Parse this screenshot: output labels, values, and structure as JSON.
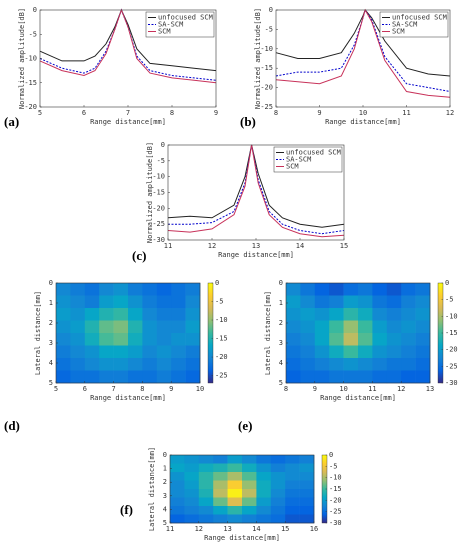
{
  "chart_data": [
    {
      "type": "line",
      "label": "(a)",
      "xlabel": "Range distance[mm]",
      "ylabel": "Normalized amplitude[dB]",
      "x": [
        5,
        5.5,
        6,
        6.25,
        6.5,
        6.7,
        6.85,
        7,
        7.2,
        7.5,
        8,
        8.5,
        9
      ],
      "series": [
        {
          "name": "unfocused SCM",
          "color": "#222222",
          "dashed": false,
          "values": [
            -8.5,
            -10.5,
            -10.5,
            -9.5,
            -7,
            -3.5,
            0,
            -3,
            -8,
            -11,
            -11.5,
            -12,
            -12.5
          ]
        },
        {
          "name": "SA-SCM",
          "color": "#0000cc",
          "dashed": true,
          "values": [
            -10,
            -12,
            -13,
            -12,
            -8.5,
            -4,
            0,
            -3.5,
            -9.5,
            -12.5,
            -13.5,
            -14,
            -14.5
          ]
        },
        {
          "name": "SCM",
          "color": "#c8325a",
          "dashed": false,
          "values": [
            -10.5,
            -12.5,
            -13.5,
            -12.5,
            -9,
            -4,
            0,
            -3.5,
            -10,
            -13,
            -14,
            -14.5,
            -15
          ]
        }
      ],
      "xlim": [
        5,
        9
      ],
      "xticks": [
        5,
        6,
        7,
        8,
        9
      ],
      "ylim": [
        -20,
        0
      ],
      "yticks": [
        0,
        -5,
        -10,
        -15,
        -20
      ],
      "legend": "upper right"
    },
    {
      "type": "line",
      "label": "(b)",
      "xlabel": "Range distance[mm]",
      "ylabel": "Normalized amplitude[dB]",
      "x": [
        8,
        8.5,
        9,
        9.5,
        9.8,
        10,
        10.05,
        10.2,
        10.5,
        11,
        11.5,
        12
      ],
      "series": [
        {
          "name": "unfocused SCM",
          "color": "#222222",
          "dashed": false,
          "values": [
            -11,
            -12.5,
            -12.5,
            -11,
            -6,
            -1.5,
            0,
            -2,
            -8,
            -15,
            -16.5,
            -17
          ]
        },
        {
          "name": "SA-SCM",
          "color": "#0000cc",
          "dashed": true,
          "values": [
            -17,
            -16,
            -16,
            -15,
            -9,
            -2,
            0,
            -2.5,
            -12,
            -19,
            -20,
            -21
          ]
        },
        {
          "name": "SCM",
          "color": "#c8325a",
          "dashed": false,
          "values": [
            -18,
            -18.5,
            -19,
            -17,
            -10,
            -2,
            0,
            -3,
            -13,
            -21,
            -22,
            -22.5
          ]
        }
      ],
      "xlim": [
        8,
        12
      ],
      "xticks": [
        8,
        9,
        10,
        11,
        12
      ],
      "ylim": [
        -25,
        0
      ],
      "yticks": [
        0,
        -5,
        -10,
        -15,
        -20,
        -25
      ],
      "legend": "upper right"
    },
    {
      "type": "line",
      "label": "(c)",
      "xlabel": "Range distance[mm]",
      "ylabel": "Normalized amplitude[dB]",
      "x": [
        11,
        11.5,
        12,
        12.5,
        12.75,
        12.9,
        13.05,
        13.3,
        13.6,
        14,
        14.5,
        15
      ],
      "series": [
        {
          "name": "unfocused SCM",
          "color": "#222222",
          "dashed": false,
          "values": [
            -23,
            -22.5,
            -23,
            -19,
            -10,
            0,
            -9,
            -19,
            -23,
            -25,
            -26,
            -25
          ]
        },
        {
          "name": "SA-SCM",
          "color": "#0000cc",
          "dashed": true,
          "values": [
            -25,
            -25,
            -24.5,
            -21,
            -12,
            0,
            -11,
            -21,
            -25,
            -27,
            -28,
            -27
          ]
        },
        {
          "name": "SCM",
          "color": "#c8325a",
          "dashed": false,
          "values": [
            -27,
            -27.5,
            -26.5,
            -22,
            -13,
            0,
            -12,
            -22,
            -26,
            -28,
            -29,
            -28.5
          ]
        }
      ],
      "xlim": [
        11,
        15
      ],
      "xticks": [
        11,
        12,
        13,
        14,
        15
      ],
      "ylim": [
        -30,
        0
      ],
      "yticks": [
        0,
        -5,
        -10,
        -15,
        -20,
        -25,
        -30
      ],
      "legend": "upper right"
    },
    {
      "type": "heatmap",
      "label": "(d)",
      "xlabel": "Range distance[mm]",
      "ylabel": "Lateral distance[mm]",
      "xlim": [
        5,
        10
      ],
      "xticks": [
        5,
        6,
        7,
        8,
        9,
        10
      ],
      "ylim": [
        0,
        5
      ],
      "yticks": [
        0,
        1,
        2,
        3,
        4,
        5
      ],
      "y_reversed": true,
      "zlim": [
        -27,
        0
      ],
      "zticks": [
        0,
        -5,
        -10,
        -15,
        -20,
        -25
      ],
      "colorscale": [
        "#352a87",
        "#0363e1",
        "#1485d4",
        "#06a7c6",
        "#38b99e",
        "#92bf73",
        "#d9ba56",
        "#fcce2e",
        "#f9fb0e"
      ],
      "z": [
        [
          -20,
          -21,
          -22,
          -20,
          -19,
          -21,
          -22,
          -23,
          -22,
          -21
        ],
        [
          -19,
          -20,
          -21,
          -18,
          -17,
          -19,
          -21,
          -22,
          -22,
          -20
        ],
        [
          -18,
          -19,
          -17,
          -15,
          -14,
          -17,
          -20,
          -21,
          -21,
          -19
        ],
        [
          -19,
          -18,
          -15,
          -12,
          -11,
          -15,
          -19,
          -20,
          -20,
          -18
        ],
        [
          -20,
          -19,
          -16,
          -13,
          -12,
          -16,
          -19,
          -20,
          -19,
          -19
        ],
        [
          -21,
          -20,
          -19,
          -17,
          -17,
          -18,
          -20,
          -19,
          -20,
          -21
        ],
        [
          -22,
          -21,
          -20,
          -19,
          -19,
          -20,
          -21,
          -20,
          -21,
          -22
        ],
        [
          -23,
          -22,
          -22,
          -21,
          -21,
          -22,
          -22,
          -21,
          -22,
          -23
        ]
      ]
    },
    {
      "type": "heatmap",
      "label": "(e)",
      "xlabel": "Range distance[mm]",
      "ylabel": "Lateral distance[mm]",
      "xlim": [
        8,
        13
      ],
      "xticks": [
        8,
        9,
        10,
        11,
        12,
        13
      ],
      "ylim": [
        0,
        5
      ],
      "yticks": [
        0,
        1,
        2,
        3,
        4,
        5
      ],
      "y_reversed": true,
      "zlim": [
        -30,
        0
      ],
      "zticks": [
        0,
        -5,
        -10,
        -15,
        -20,
        -25,
        -30
      ],
      "colorscale": [
        "#352a87",
        "#0363e1",
        "#1485d4",
        "#06a7c6",
        "#38b99e",
        "#92bf73",
        "#d9ba56",
        "#fcce2e",
        "#f9fb0e"
      ],
      "z": [
        [
          -22,
          -24,
          -26,
          -27,
          -25,
          -24,
          -26,
          -27,
          -25,
          -24
        ],
        [
          -20,
          -22,
          -24,
          -23,
          -20,
          -21,
          -24,
          -25,
          -23,
          -22
        ],
        [
          -21,
          -20,
          -21,
          -19,
          -16,
          -18,
          -22,
          -23,
          -22,
          -21
        ],
        [
          -22,
          -21,
          -19,
          -15,
          -11,
          -15,
          -20,
          -22,
          -21,
          -22
        ],
        [
          -23,
          -22,
          -19,
          -14,
          -9,
          -14,
          -19,
          -21,
          -22,
          -23
        ],
        [
          -24,
          -23,
          -21,
          -18,
          -15,
          -18,
          -21,
          -22,
          -23,
          -24
        ],
        [
          -25,
          -24,
          -23,
          -22,
          -21,
          -22,
          -23,
          -24,
          -24,
          -25
        ],
        [
          -26,
          -25,
          -25,
          -24,
          -24,
          -24,
          -25,
          -25,
          -26,
          -26
        ]
      ]
    },
    {
      "type": "heatmap",
      "label": "(f)",
      "xlabel": "Range distance[mm]",
      "ylabel": "Lateral distance[mm]",
      "xlim": [
        11,
        16
      ],
      "xticks": [
        11,
        12,
        13,
        14,
        15,
        16
      ],
      "ylim": [
        0,
        5
      ],
      "yticks": [
        0,
        1,
        2,
        3,
        4,
        5
      ],
      "y_reversed": true,
      "zlim": [
        -30,
        0
      ],
      "zticks": [
        0,
        -5,
        -10,
        -15,
        -20,
        -25,
        -30
      ],
      "colorscale": [
        "#352a87",
        "#0363e1",
        "#1485d4",
        "#06a7c6",
        "#38b99e",
        "#92bf73",
        "#d9ba56",
        "#fcce2e",
        "#f9fb0e"
      ],
      "z": [
        [
          -20,
          -21,
          -22,
          -23,
          -20,
          -22,
          -24,
          -25,
          -24,
          -23
        ],
        [
          -19,
          -20,
          -18,
          -17,
          -15,
          -18,
          -21,
          -23,
          -22,
          -21
        ],
        [
          -21,
          -19,
          -16,
          -13,
          -10,
          -14,
          -19,
          -21,
          -22,
          -22
        ],
        [
          -22,
          -20,
          -16,
          -10,
          -4,
          -11,
          -18,
          -21,
          -23,
          -23
        ],
        [
          -22,
          -21,
          -17,
          -9,
          -1,
          -9,
          -18,
          -22,
          -24,
          -24
        ],
        [
          -23,
          -22,
          -19,
          -13,
          -7,
          -13,
          -20,
          -23,
          -25,
          -25
        ],
        [
          -24,
          -23,
          -22,
          -19,
          -16,
          -19,
          -22,
          -24,
          -26,
          -26
        ],
        [
          -26,
          -25,
          -24,
          -23,
          -22,
          -23,
          -24,
          -25,
          -27,
          -27
        ]
      ]
    }
  ]
}
